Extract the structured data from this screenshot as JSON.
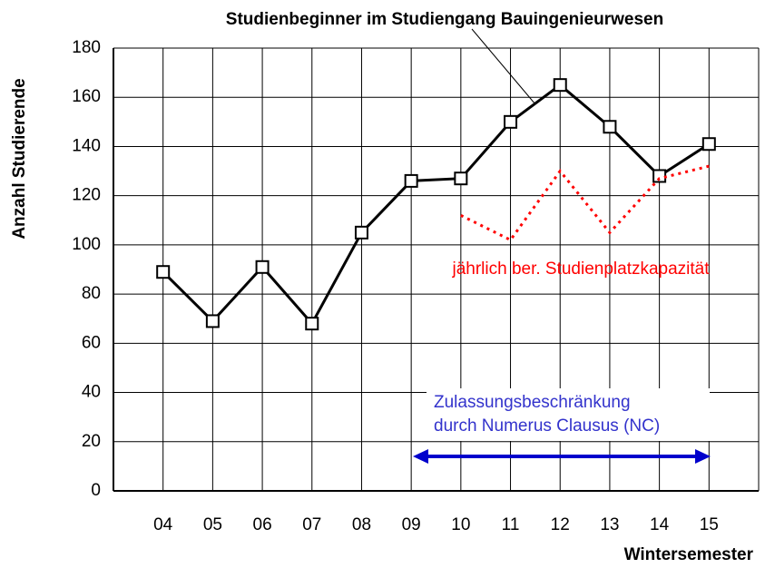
{
  "chart_data": {
    "type": "line",
    "title": "Studienbeginner im Studiengang Bauingenieurwesen",
    "x_label": "Wintersemester",
    "y_label": "Anzahl Studierende",
    "categories": [
      "04",
      "05",
      "06",
      "07",
      "08",
      "09",
      "10",
      "11",
      "12",
      "13",
      "14",
      "15"
    ],
    "series": [
      {
        "color": "#000000",
        "style": "solid",
        "marker": "square",
        "values": [
          89,
          69,
          91,
          68,
          105,
          126,
          127,
          150,
          165,
          148,
          128,
          141
        ]
      },
      {
        "color": "#ff0000",
        "style": "dotted",
        "values": [
          null,
          null,
          null,
          null,
          null,
          null,
          112,
          102,
          130,
          105,
          127,
          132
        ]
      }
    ],
    "annotations": [
      "jährlich ber. Studienplatzkapazität",
      "Zulassungsbeschränkung",
      "durch Numerus Clausus (NC)"
    ],
    "ylim": [
      0,
      180
    ],
    "yticks": [
      0,
      20,
      40,
      60,
      80,
      100,
      120,
      140,
      160,
      180
    ],
    "grid": true
  }
}
